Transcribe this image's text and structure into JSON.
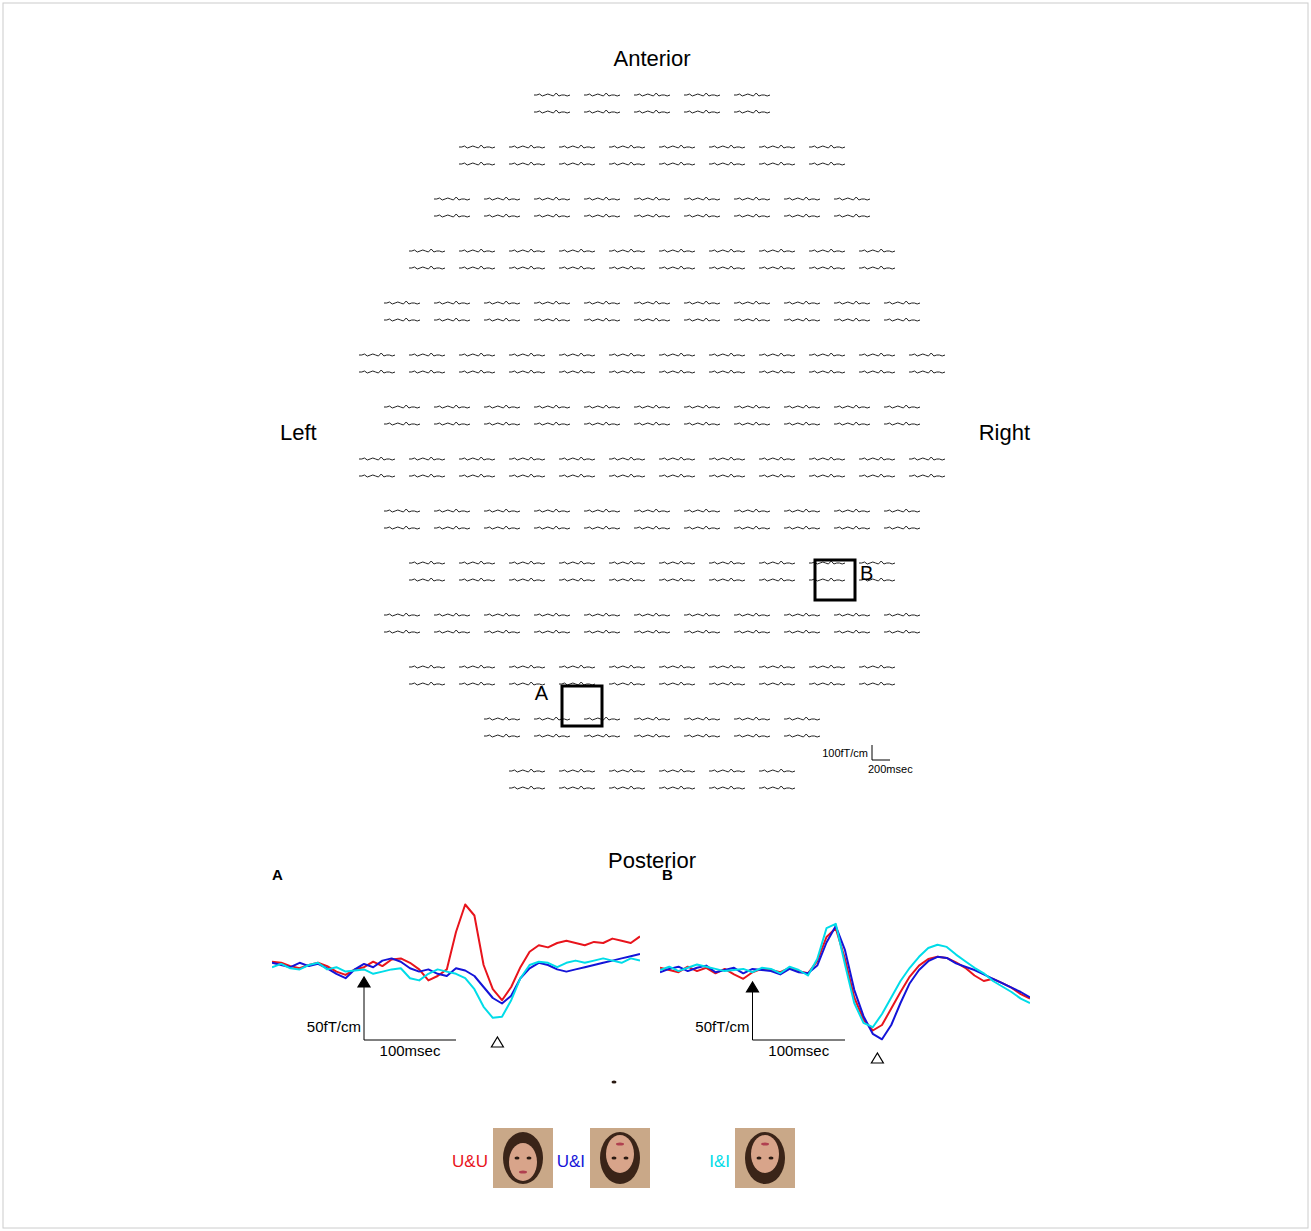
{
  "sensor_array": {
    "labels": {
      "anterior": "Anterior",
      "posterior": "Posterior",
      "left": "Left",
      "right": "Right"
    },
    "boxes": [
      {
        "label": "A"
      },
      {
        "label": "B"
      }
    ],
    "scale_bar": {
      "y": 100,
      "y_label": "100fT/cm",
      "x": 200,
      "x_label": "200msec"
    }
  },
  "chart_data": [
    {
      "type": "line",
      "title": "A",
      "tick_labels": false,
      "x": [
        -100,
        -90,
        -80,
        -70,
        -60,
        -50,
        -40,
        -30,
        -20,
        -10,
        0,
        10,
        20,
        30,
        40,
        50,
        60,
        70,
        80,
        90,
        100,
        110,
        120,
        130,
        140,
        150,
        160,
        170,
        180,
        190,
        200,
        210,
        220,
        230,
        240,
        250,
        260,
        270,
        280,
        290,
        300
      ],
      "xlim": [
        -100,
        300
      ],
      "ylim": [
        -60,
        75
      ],
      "scale_bar": {
        "y": 50,
        "y_label": "50fT/cm",
        "x": 100,
        "x_label": "100msec"
      },
      "events": [
        {
          "x": 0,
          "marker": "filled-triangle"
        },
        {
          "x": 145,
          "marker": "open-triangle"
        }
      ],
      "series": [
        {
          "name": "U&U",
          "color": "#e8141c",
          "values": [
            3,
            2,
            -1,
            -3,
            0,
            2,
            -1,
            -6,
            -9,
            -4,
            -2,
            3,
            -1,
            5,
            6,
            2,
            -4,
            -14,
            -10,
            -4,
            30,
            55,
            45,
            0,
            -22,
            -32,
            -20,
            -2,
            12,
            18,
            16,
            20,
            22,
            20,
            18,
            21,
            20,
            24,
            22,
            20,
            26
          ]
        },
        {
          "name": "U&I",
          "color": "#1414d8",
          "values": [
            2,
            0,
            -2,
            2,
            -1,
            1,
            -3,
            -8,
            -12,
            -4,
            1,
            -2,
            4,
            6,
            3,
            -3,
            -6,
            -4,
            -8,
            -10,
            -3,
            -5,
            -10,
            -20,
            -30,
            -35,
            -28,
            -12,
            -3,
            2,
            0,
            -4,
            -6,
            -4,
            -2,
            0,
            2,
            4,
            6,
            8,
            10
          ]
        },
        {
          "name": "I&I",
          "color": "#00dce8",
          "values": [
            -2,
            1,
            -3,
            -4,
            0,
            2,
            -4,
            -2,
            -6,
            -5,
            -4,
            -8,
            -6,
            -4,
            -3,
            -12,
            -14,
            -8,
            -4,
            -6,
            -8,
            -12,
            -22,
            -38,
            -48,
            -47,
            -32,
            -12,
            0,
            3,
            2,
            -2,
            2,
            4,
            2,
            4,
            6,
            4,
            2,
            6,
            4
          ]
        }
      ]
    },
    {
      "type": "line",
      "title": "B",
      "tick_labels": false,
      "x": [
        -100,
        -90,
        -80,
        -70,
        -60,
        -50,
        -40,
        -30,
        -20,
        -10,
        0,
        10,
        20,
        30,
        40,
        50,
        60,
        70,
        80,
        90,
        100,
        110,
        120,
        130,
        140,
        150,
        160,
        170,
        180,
        190,
        200,
        210,
        220,
        230,
        240,
        250,
        260,
        270,
        280,
        290,
        300
      ],
      "xlim": [
        -100,
        300
      ],
      "ylim": [
        -70,
        55
      ],
      "scale_bar": {
        "y": 50,
        "y_label": "50fT/cm",
        "x": 100,
        "x_label": "100msec"
      },
      "events": [
        {
          "x": 0,
          "marker": "filled-triangle"
        },
        {
          "x": 135,
          "marker": "open-triangle"
        }
      ],
      "series": [
        {
          "color": "#e8141c",
          "values": [
            2,
            0,
            -2,
            3,
            -1,
            2,
            -3,
            1,
            -4,
            -8,
            -2,
            1,
            0,
            -2,
            2,
            -1,
            -3,
            8,
            30,
            38,
            10,
            -25,
            -45,
            -55,
            -50,
            -35,
            -20,
            -6,
            4,
            10,
            12,
            11,
            7,
            2,
            -5,
            -10,
            -8,
            -12,
            -16,
            -22,
            -26
          ]
        },
        {
          "color": "#1414d8",
          "values": [
            -2,
            1,
            3,
            -1,
            2,
            4,
            -2,
            0,
            2,
            -3,
            1,
            0,
            -1,
            -4,
            1,
            -2,
            -3,
            4,
            25,
            40,
            18,
            -18,
            -42,
            -58,
            -63,
            -50,
            -30,
            -12,
            0,
            8,
            12,
            11,
            6,
            3,
            0,
            -4,
            -8,
            -12,
            -16,
            -20,
            -25
          ]
        },
        {
          "color": "#00dce8",
          "values": [
            0,
            3,
            -1,
            2,
            5,
            3,
            1,
            -1,
            0,
            1,
            -2,
            2,
            1,
            -3,
            3,
            0,
            -5,
            10,
            38,
            42,
            5,
            -30,
            -48,
            -52,
            -40,
            -25,
            -10,
            2,
            12,
            20,
            23,
            21,
            14,
            8,
            2,
            -3,
            -10,
            -15,
            -20,
            -26,
            -30
          ]
        }
      ]
    }
  ]
}
